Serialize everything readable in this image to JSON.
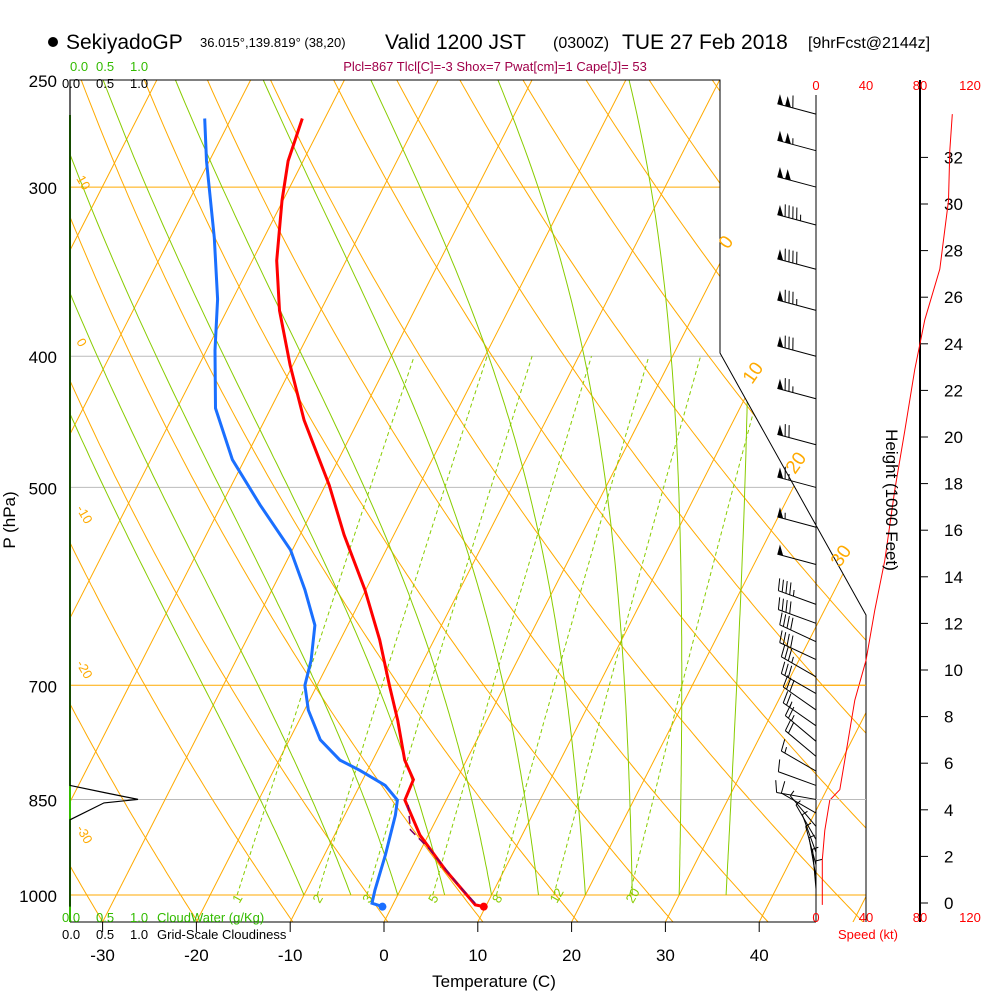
{
  "header": {
    "station": "SekiyadoGP",
    "coords": "36.015°,139.819° (38,20)",
    "valid": "Valid 1200 JST",
    "zulu": "(0300Z)",
    "date": "TUE 27 Feb 2018",
    "forecast": "[9hrFcst@2144z]"
  },
  "indices": "Plcl=867 Tlcl[C]=-3 Shox=7 Pwat[cm]=1 Cape[J]= 53",
  "colors": {
    "temperature": "#ff0000",
    "dewpoint": "#1a6fff",
    "parcel": "#800060",
    "isotherm": "#ffaa00",
    "moist": "#88cc00",
    "mixing": "#88cc00",
    "indices": "#a0004a"
  },
  "cloud_scale": {
    "ticks": [
      "0.0",
      "0.5",
      "1.0"
    ],
    "cloudwater_label": "CloudWater (g/Kg)",
    "cloudiness_label": "Grid-Scale Cloudiness"
  },
  "speed_axis": {
    "ticks": [
      "0",
      "40",
      "80",
      "120"
    ],
    "label": "Speed (kt)"
  },
  "chart_data": {
    "type": "line",
    "subtype": "skew-T log-P",
    "xlabel": "Temperature (C)",
    "ylabel": "P (hPa)",
    "y2label": "Height (1000 Feet)",
    "pressure_ticks": [
      250,
      300,
      400,
      500,
      700,
      850,
      1000
    ],
    "temperature_ticks": [
      -30,
      -20,
      -10,
      0,
      10,
      20,
      30,
      40
    ],
    "height_ticks": [
      0,
      2,
      4,
      6,
      8,
      10,
      12,
      14,
      16,
      18,
      20,
      22,
      24,
      26,
      28,
      30,
      32
    ],
    "series": [
      {
        "name": "Temperature",
        "points": [
          [
            1020,
            9.8
          ],
          [
            1017,
            8.8
          ],
          [
            958,
            3.7
          ],
          [
            903,
            -0.9
          ],
          [
            851,
            -4.4
          ],
          [
            822,
            -4.6
          ],
          [
            795,
            -6.6
          ],
          [
            743,
            -9.5
          ],
          [
            700,
            -12.3
          ],
          [
            648,
            -15.8
          ],
          [
            595,
            -20.1
          ],
          [
            542,
            -25.3
          ],
          [
            498,
            -29.6
          ],
          [
            446,
            -35.8
          ],
          [
            406,
            -40.3
          ],
          [
            370,
            -44.4
          ],
          [
            340,
            -47.4
          ],
          [
            307,
            -50.1
          ],
          [
            287,
            -51.6
          ],
          [
            267,
            -52.4
          ]
        ]
      },
      {
        "name": "Dewpoint",
        "points": [
          [
            1020,
            -1.0
          ],
          [
            1014,
            -2.3
          ],
          [
            992,
            -2.7
          ],
          [
            934,
            -3.5
          ],
          [
            873,
            -4.6
          ],
          [
            851,
            -5.2
          ],
          [
            830,
            -7.3
          ],
          [
            809,
            -10.8
          ],
          [
            795,
            -13.5
          ],
          [
            768,
            -16.7
          ],
          [
            730,
            -19.6
          ],
          [
            700,
            -21.3
          ],
          [
            671,
            -22.0
          ],
          [
            632,
            -23.5
          ],
          [
            595,
            -26.5
          ],
          [
            556,
            -30.2
          ],
          [
            515,
            -35.9
          ],
          [
            477,
            -41.3
          ],
          [
            437,
            -45.9
          ],
          [
            396,
            -49.1
          ],
          [
            363,
            -51.6
          ],
          [
            327,
            -55.3
          ],
          [
            287,
            -60.3
          ],
          [
            267,
            -62.8
          ]
        ]
      },
      {
        "name": "Parcel",
        "points": [
          [
            1014,
            8.7
          ],
          [
            983,
            5.9
          ],
          [
            926,
            1.0
          ],
          [
            895,
            -2.2
          ],
          [
            858,
            -3.8
          ]
        ]
      }
    ],
    "wind_speed_profile": [
      [
        1017,
        5
      ],
      [
        942,
        5
      ],
      [
        896,
        7
      ],
      [
        851,
        11
      ],
      [
        836,
        19
      ],
      [
        795,
        23
      ],
      [
        718,
        31
      ],
      [
        671,
        40
      ],
      [
        616,
        47
      ],
      [
        566,
        55
      ],
      [
        502,
        63
      ],
      [
        454,
        71
      ],
      [
        409,
        79
      ],
      [
        376,
        87
      ],
      [
        345,
        99
      ],
      [
        307,
        106
      ],
      [
        282,
        107
      ],
      [
        265,
        109
      ]
    ],
    "wind_barbs": [
      [
        265,
        285,
        110
      ],
      [
        282,
        285,
        105
      ],
      [
        300,
        285,
        100
      ],
      [
        320,
        285,
        95
      ],
      [
        345,
        285,
        90
      ],
      [
        370,
        285,
        85
      ],
      [
        400,
        285,
        80
      ],
      [
        430,
        285,
        75
      ],
      [
        465,
        285,
        70
      ],
      [
        500,
        285,
        65
      ],
      [
        535,
        285,
        55
      ],
      [
        570,
        285,
        50
      ],
      [
        610,
        290,
        45
      ],
      [
        630,
        290,
        42
      ],
      [
        650,
        295,
        40
      ],
      [
        670,
        295,
        38
      ],
      [
        690,
        300,
        35
      ],
      [
        710,
        300,
        32
      ],
      [
        730,
        305,
        30
      ],
      [
        750,
        305,
        27
      ],
      [
        770,
        310,
        25
      ],
      [
        790,
        310,
        22
      ],
      [
        810,
        300,
        15
      ],
      [
        830,
        290,
        10
      ],
      [
        850,
        280,
        10
      ],
      [
        870,
        300,
        8
      ],
      [
        890,
        320,
        7
      ],
      [
        910,
        330,
        6
      ],
      [
        930,
        340,
        5
      ],
      [
        950,
        345,
        5
      ],
      [
        970,
        350,
        5
      ],
      [
        990,
        355,
        5
      ],
      [
        1010,
        0,
        5
      ]
    ],
    "cloudiness_profile": [
      [
        1020,
        0
      ],
      [
        880,
        0
      ],
      [
        855,
        0.5
      ],
      [
        850,
        1.0
      ],
      [
        840,
        0.5
      ],
      [
        830,
        0
      ],
      [
        250,
        0
      ]
    ],
    "dry_adiabat_labels": [
      "10",
      "0",
      "-10",
      "-20",
      "-30"
    ],
    "isotherm_labels": [
      "0",
      "10",
      "20",
      "30"
    ],
    "mixing_ratio_labels": [
      "1",
      "2",
      "3",
      "5",
      "8",
      "12",
      "20"
    ],
    "ylim": [
      250,
      1050
    ],
    "xlim_at_bottom": [
      -33,
      36
    ]
  }
}
